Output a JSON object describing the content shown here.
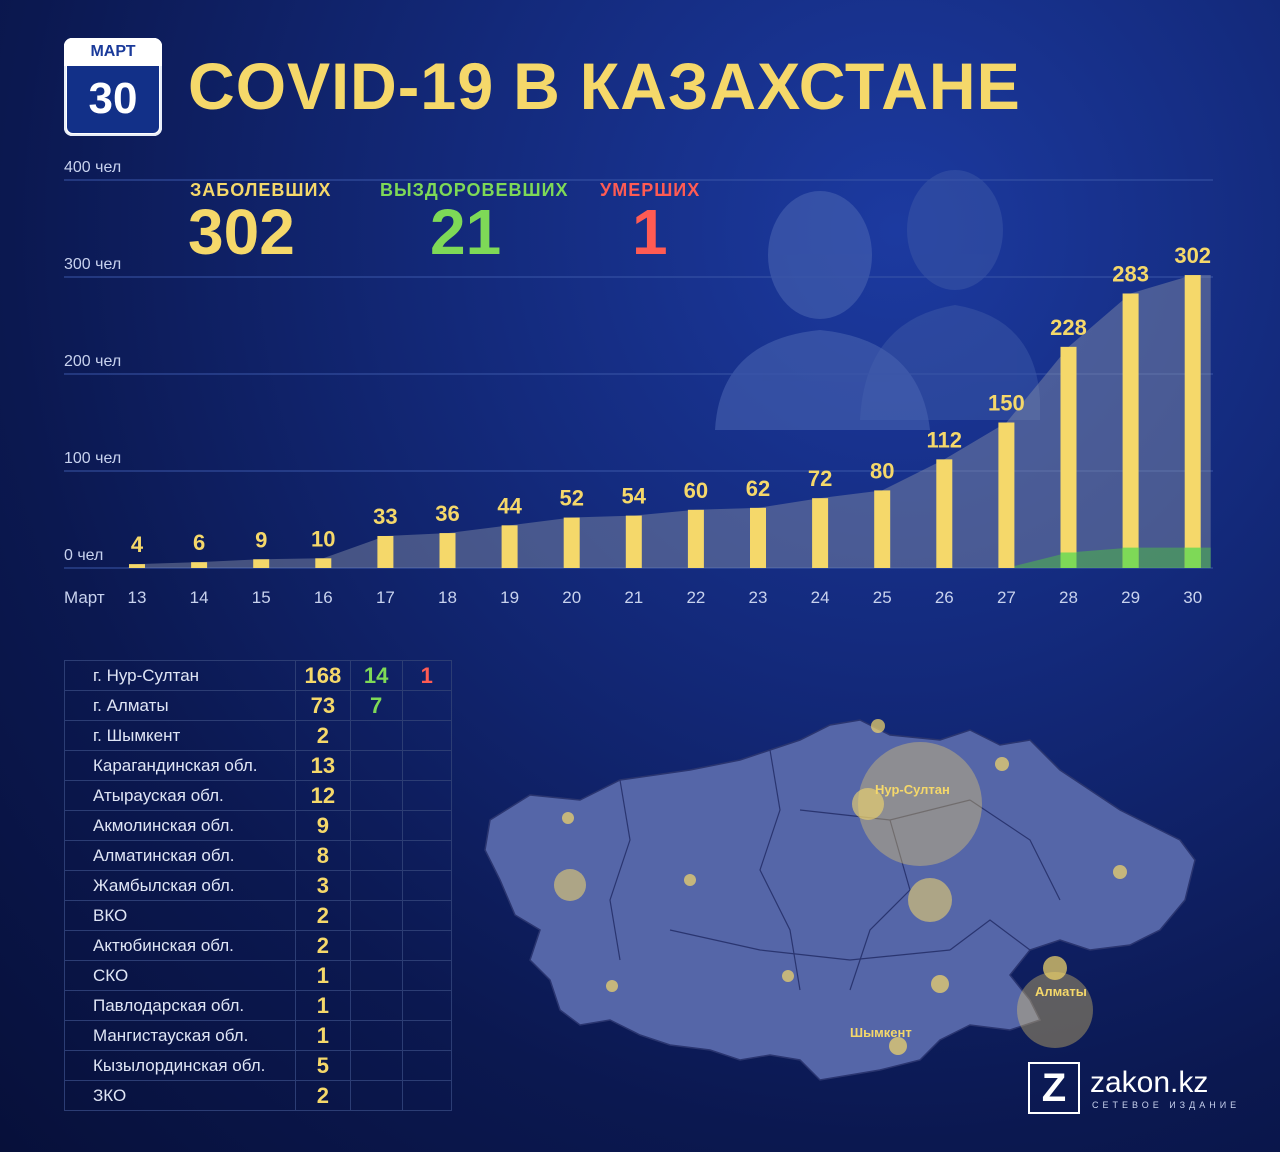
{
  "calendar": {
    "month": "МАРТ",
    "day": "30"
  },
  "title": "COVID-19 В КАЗАХСТАНЕ",
  "stats": {
    "infected": {
      "label": "ЗАБОЛЕВШИХ",
      "value": "302",
      "color": "#f5d86a"
    },
    "recovered": {
      "label": "ВЫЗДОРОВЕВШИХ",
      "value": "21",
      "color": "#7ed957"
    },
    "deaths": {
      "label": "УМЕРШИХ",
      "value": "1",
      "color": "#ff5b53"
    }
  },
  "chart_data": {
    "type": "bar",
    "x_prefix": "Март",
    "categories": [
      "13",
      "14",
      "15",
      "16",
      "17",
      "18",
      "19",
      "20",
      "21",
      "22",
      "23",
      "24",
      "25",
      "26",
      "27",
      "28",
      "29",
      "30"
    ],
    "series": [
      {
        "name": "ЗАБОЛЕВШИХ",
        "values": [
          4,
          6,
          9,
          10,
          33,
          36,
          44,
          52,
          54,
          60,
          62,
          72,
          80,
          112,
          150,
          228,
          283,
          302
        ],
        "color": "#f5d86a"
      },
      {
        "name": "ВЫЗДОРОВЕВШИХ",
        "values": [
          0,
          0,
          0,
          0,
          0,
          0,
          0,
          0,
          0,
          0,
          0,
          0,
          0,
          0,
          0,
          16,
          21,
          21
        ],
        "color": "#7ed957"
      }
    ],
    "y_ticks": [
      "0 чел",
      "100 чел",
      "200 чел",
      "300 чел",
      "400 чел"
    ],
    "ylim": [
      0,
      400
    ],
    "grid": true
  },
  "regions": [
    {
      "name": "г. Нур-Султан",
      "infected": "168",
      "recovered": "14",
      "deaths": "1"
    },
    {
      "name": "г. Алматы",
      "infected": "73",
      "recovered": "7",
      "deaths": ""
    },
    {
      "name": "г. Шымкент",
      "infected": "2",
      "recovered": "",
      "deaths": ""
    },
    {
      "name": "Карагандинская обл.",
      "infected": "13",
      "recovered": "",
      "deaths": ""
    },
    {
      "name": "Атырауская обл.",
      "infected": "12",
      "recovered": "",
      "deaths": ""
    },
    {
      "name": "Акмолинская обл.",
      "infected": "9",
      "recovered": "",
      "deaths": ""
    },
    {
      "name": "Алматинская обл.",
      "infected": "8",
      "recovered": "",
      "deaths": ""
    },
    {
      "name": "Жамбылская обл.",
      "infected": "3",
      "recovered": "",
      "deaths": ""
    },
    {
      "name": "ВКО",
      "infected": "2",
      "recovered": "",
      "deaths": ""
    },
    {
      "name": "Актюбинская обл.",
      "infected": "2",
      "recovered": "",
      "deaths": ""
    },
    {
      "name": "СКО",
      "infected": "1",
      "recovered": "",
      "deaths": ""
    },
    {
      "name": "Павлодарская обл.",
      "infected": "1",
      "recovered": "",
      "deaths": ""
    },
    {
      "name": "Мангистауская обл.",
      "infected": "1",
      "recovered": "",
      "deaths": ""
    },
    {
      "name": "Кызылординская обл.",
      "infected": "5",
      "recovered": "",
      "deaths": ""
    },
    {
      "name": "ЗКО",
      "infected": "2",
      "recovered": "",
      "deaths": ""
    }
  ],
  "map": {
    "labels": {
      "nursultan": "Нур-Султан",
      "almaty": "Алматы",
      "shymkent": "Шымкент"
    },
    "fill": "#5566a8",
    "marker": "#f5d86a"
  },
  "logo": {
    "letter": "Z",
    "name": "zakon.kz",
    "sub": "СЕТЕВОЕ ИЗДАНИЕ"
  }
}
